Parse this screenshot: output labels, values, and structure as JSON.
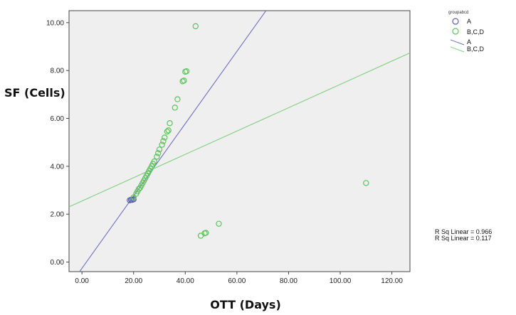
{
  "chart_data": {
    "type": "scatter",
    "xlabel": "OTT (Days)",
    "ylabel": "SF (Cells)",
    "xlim": [
      -5,
      127
    ],
    "ylim": [
      -0.4,
      10.5
    ],
    "xticks": [
      "0.00",
      "20.00",
      "40.00",
      "60.00",
      "80.00",
      "100.00",
      "120.00"
    ],
    "xtick_values": [
      0,
      20,
      40,
      60,
      80,
      100,
      120
    ],
    "yticks": [
      "0.00",
      "2.00",
      "4.00",
      "6.00",
      "8.00",
      "10.00"
    ],
    "ytick_values": [
      0,
      2,
      4,
      6,
      8,
      10
    ],
    "background": "#efefef",
    "grid": false,
    "legend_title": "groupabcd",
    "legend_position": "top-right",
    "series": [
      {
        "name": "A",
        "color": "#5b5fb0",
        "marker": "open-circle",
        "points": [
          [
            18.5,
            2.58
          ],
          [
            19.0,
            2.6
          ],
          [
            19.5,
            2.6
          ],
          [
            20.0,
            2.62
          ]
        ]
      },
      {
        "name": "B,C,D",
        "color": "#5fc25f",
        "marker": "open-circle",
        "points": [
          [
            20.0,
            2.7
          ],
          [
            21.0,
            2.85
          ],
          [
            21.5,
            2.95
          ],
          [
            22.0,
            3.05
          ],
          [
            22.5,
            3.1
          ],
          [
            23.0,
            3.2
          ],
          [
            23.5,
            3.3
          ],
          [
            24.0,
            3.4
          ],
          [
            24.5,
            3.5
          ],
          [
            25.0,
            3.6
          ],
          [
            25.5,
            3.7
          ],
          [
            26.0,
            3.8
          ],
          [
            26.5,
            3.9
          ],
          [
            27.0,
            4.0
          ],
          [
            27.5,
            4.1
          ],
          [
            28.0,
            4.2
          ],
          [
            29.0,
            4.4
          ],
          [
            29.5,
            4.55
          ],
          [
            30.0,
            4.7
          ],
          [
            31.0,
            4.9
          ],
          [
            31.5,
            5.05
          ],
          [
            32.0,
            5.2
          ],
          [
            33.0,
            5.45
          ],
          [
            33.5,
            5.5
          ],
          [
            34.0,
            5.8
          ],
          [
            36.0,
            6.45
          ],
          [
            37.0,
            6.8
          ],
          [
            39.0,
            7.55
          ],
          [
            39.5,
            7.58
          ],
          [
            40.0,
            7.95
          ],
          [
            40.5,
            7.97
          ],
          [
            44.0,
            9.85
          ],
          [
            46.0,
            1.1
          ],
          [
            47.5,
            1.2
          ],
          [
            48.0,
            1.22
          ],
          [
            53.0,
            1.6
          ],
          [
            110.0,
            3.3
          ]
        ]
      }
    ],
    "fit_lines": [
      {
        "name": "A",
        "color": "#6f70c0",
        "intercept": -0.26,
        "slope": 0.151
      },
      {
        "name": "B,C,D",
        "color": "#7fcf7f",
        "intercept": 2.55,
        "slope": 0.0487
      }
    ],
    "annotations": [
      "R Sq Linear = 0.966",
      "R Sq Linear = 0.117"
    ]
  }
}
